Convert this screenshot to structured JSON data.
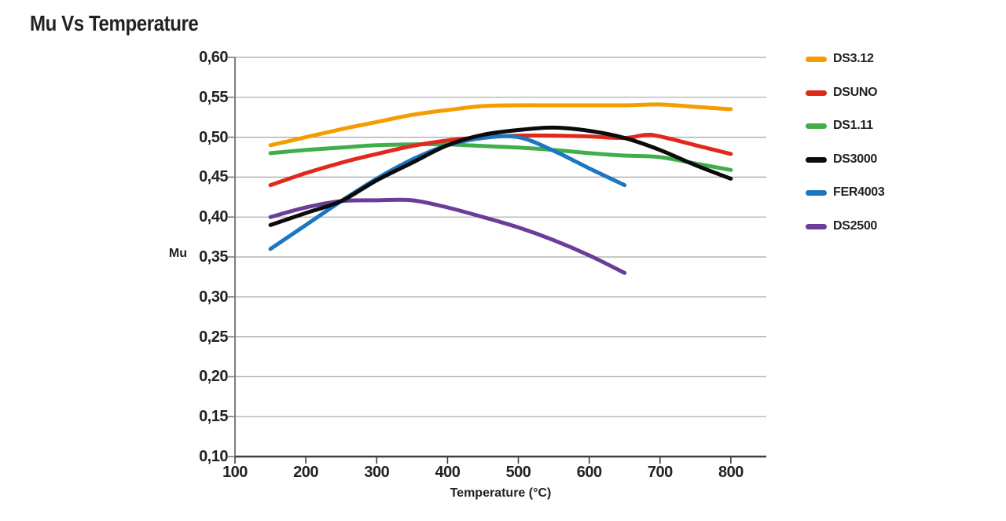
{
  "page": {
    "title": "Mu Vs Temperature"
  },
  "chart_data": {
    "type": "line",
    "title": "Mu Vs Temperature",
    "xlabel": "Temperature (°C)",
    "ylabel": "Mu",
    "xlim": [
      100,
      850
    ],
    "ylim": [
      0.1,
      0.6
    ],
    "grid": "horizontal",
    "legend_position": "right",
    "x_ticks": [
      100,
      200,
      300,
      400,
      500,
      600,
      700,
      800
    ],
    "x_tick_labels": [
      "100",
      "200",
      "300",
      "400",
      "500",
      "600",
      "700",
      "800"
    ],
    "y_ticks": [
      0.6,
      0.55,
      0.5,
      0.45,
      0.4,
      0.35,
      0.3,
      0.25,
      0.2,
      0.15,
      0.1
    ],
    "y_tick_labels": [
      "0,60",
      "0,55",
      "0,50",
      "0,45",
      "0,40",
      "0,35",
      "0,30",
      "0,25",
      "0,20",
      "0,15",
      "0,10"
    ],
    "style": {
      "text_color": "#242122",
      "grid_color": "#A6A6A6",
      "y_axis_color": "#7E7E7E",
      "x_axis_color": "#3F3F3F",
      "line_width": 5
    },
    "draw_order": [
      "DS3.12",
      "DS1.11",
      "DSUNO",
      "DS2500",
      "FER4003",
      "DS3000"
    ],
    "series": [
      {
        "name": "DS3.12",
        "color": "#F59C00",
        "x": [
          150,
          200,
          250,
          300,
          350,
          400,
          450,
          500,
          550,
          600,
          650,
          700,
          750,
          800
        ],
        "y": [
          0.49,
          0.5,
          0.51,
          0.519,
          0.528,
          0.534,
          0.539,
          0.54,
          0.54,
          0.54,
          0.54,
          0.541,
          0.538,
          0.535
        ]
      },
      {
        "name": "DSUNO",
        "color": "#E1281D",
        "x": [
          150,
          200,
          250,
          300,
          350,
          400,
          450,
          500,
          550,
          600,
          650,
          680,
          700,
          750,
          800
        ],
        "y": [
          0.44,
          0.455,
          0.468,
          0.479,
          0.489,
          0.496,
          0.5,
          0.502,
          0.502,
          0.501,
          0.499,
          0.503,
          0.501,
          0.49,
          0.479
        ]
      },
      {
        "name": "DS1.11",
        "color": "#42AE4B",
        "x": [
          150,
          200,
          250,
          300,
          350,
          400,
          450,
          500,
          550,
          600,
          650,
          700,
          750,
          800
        ],
        "y": [
          0.48,
          0.484,
          0.487,
          0.49,
          0.491,
          0.491,
          0.489,
          0.487,
          0.484,
          0.48,
          0.477,
          0.475,
          0.467,
          0.459
        ]
      },
      {
        "name": "DS3000",
        "color": "#0B0B0B",
        "x": [
          150,
          200,
          250,
          300,
          350,
          400,
          450,
          500,
          550,
          600,
          650,
          700,
          750,
          800
        ],
        "y": [
          0.39,
          0.405,
          0.42,
          0.446,
          0.468,
          0.49,
          0.503,
          0.509,
          0.512,
          0.508,
          0.499,
          0.484,
          0.465,
          0.448
        ]
      },
      {
        "name": "FER4003",
        "color": "#1C76C0",
        "x": [
          150,
          200,
          250,
          300,
          350,
          400,
          450,
          500,
          550,
          600,
          650
        ],
        "y": [
          0.36,
          0.39,
          0.42,
          0.448,
          0.472,
          0.49,
          0.499,
          0.5,
          0.483,
          0.461,
          0.44
        ]
      },
      {
        "name": "DS2500",
        "color": "#6A3E97",
        "x": [
          150,
          200,
          250,
          300,
          350,
          400,
          450,
          500,
          550,
          600,
          650
        ],
        "y": [
          0.4,
          0.412,
          0.42,
          0.421,
          0.421,
          0.412,
          0.4,
          0.387,
          0.371,
          0.352,
          0.33
        ]
      }
    ]
  }
}
